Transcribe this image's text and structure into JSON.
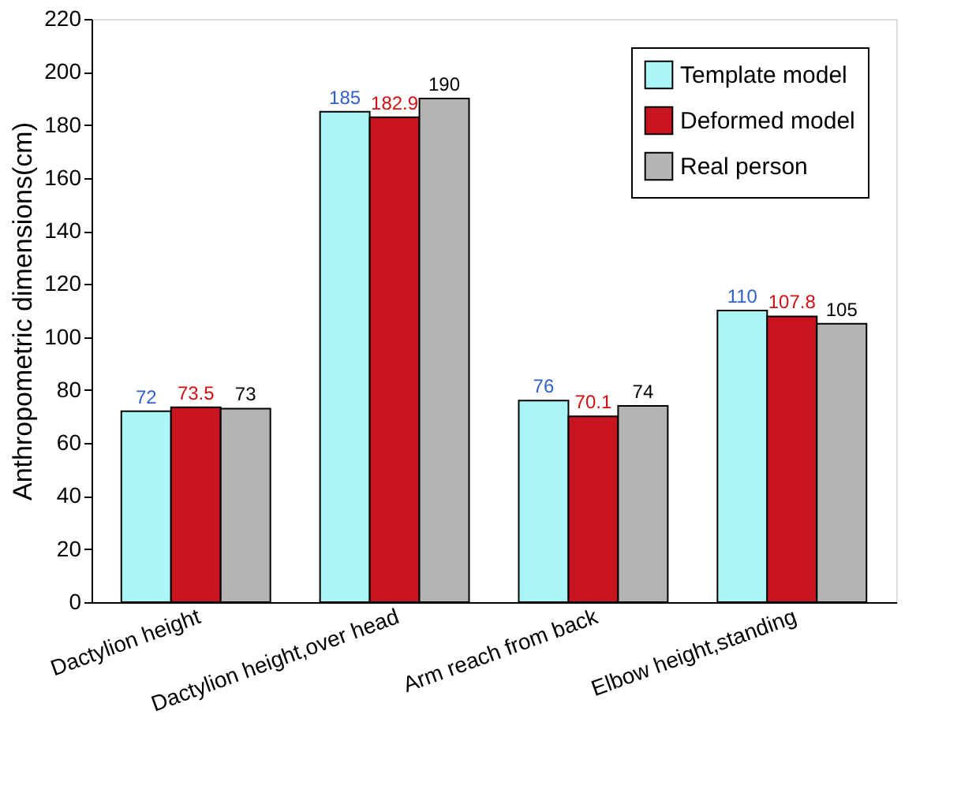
{
  "chart_data": {
    "type": "bar",
    "ylabel": "Anthropometric dimensions(cm)",
    "categories": [
      "Dactylion height",
      "Dactylion height,over head",
      "Arm reach from back",
      "Elbow height,standing"
    ],
    "series": [
      {
        "name": "Template model",
        "color": "#aaf5f5",
        "values": [
          72,
          185,
          76,
          110
        ]
      },
      {
        "name": "Deformed model",
        "color": "#c8141e",
        "values": [
          73.5,
          182.9,
          70.1,
          107.8
        ]
      },
      {
        "name": "Real person",
        "color": "#b4b4b4",
        "values": [
          73,
          190,
          74,
          105
        ]
      }
    ],
    "ylim": [
      0,
      220
    ],
    "yticks": [
      0,
      20,
      40,
      60,
      80,
      100,
      120,
      140,
      160,
      180,
      200,
      220
    ],
    "data_labels": true,
    "legend": "top right",
    "grid": false
  }
}
